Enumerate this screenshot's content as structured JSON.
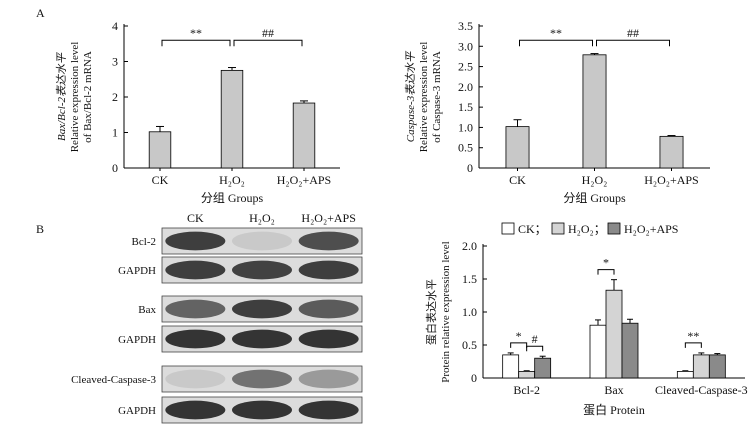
{
  "panel_labels": {
    "a": "A",
    "b": "B"
  },
  "chart_data": [
    {
      "type": "bar",
      "id": "bax_bcl2",
      "title": "",
      "xlabel": "分组 Groups",
      "ylabel_lines": [
        "Bax/Bcl-2表达水平",
        "Relative expression level",
        "of Bax/Bcl-2 mRNA"
      ],
      "categories": [
        "CK",
        "H₂O₂",
        "H₂O₂+APS"
      ],
      "values": [
        1.02,
        2.75,
        1.83
      ],
      "errors": [
        0.15,
        0.08,
        0.06
      ],
      "ylim": [
        0,
        4
      ],
      "yticks": [
        "0",
        "1",
        "2",
        "3",
        "4"
      ],
      "bar_color": "#c8c8c8",
      "significance": [
        {
          "from": 0,
          "to": 1,
          "label": "**"
        },
        {
          "from": 1,
          "to": 2,
          "label": "##"
        }
      ]
    },
    {
      "type": "bar",
      "id": "caspase3",
      "title": "",
      "xlabel": "分组 Groups",
      "ylabel_lines": [
        "Caspase-3表达水平",
        "Relative expression level",
        "of Caspase-3 mRNA"
      ],
      "categories": [
        "CK",
        "H₂O₂",
        "H₂O₂+APS"
      ],
      "values": [
        1.02,
        2.79,
        0.78
      ],
      "errors": [
        0.17,
        0.03,
        0.02
      ],
      "ylim": [
        0,
        3.5
      ],
      "yticks": [
        "0",
        "0.5",
        "1.0",
        "1.5",
        "2.0",
        "2.5",
        "3.0",
        "3.5"
      ],
      "bar_color": "#c8c8c8",
      "significance": [
        {
          "from": 0,
          "to": 1,
          "label": "**"
        },
        {
          "from": 1,
          "to": 2,
          "label": "##"
        }
      ]
    },
    {
      "type": "bar",
      "id": "protein",
      "title": "",
      "xlabel": "蛋白 Protein",
      "ylabel_lines": [
        "蛋白表达水平",
        "Protein relative expression level"
      ],
      "categories": [
        "Bcl-2",
        "Bax",
        "Cleaved-Caspase-3"
      ],
      "series": [
        {
          "name": "CK；",
          "values": [
            0.35,
            0.8,
            0.1
          ],
          "errors": [
            0.03,
            0.08,
            0.01
          ],
          "color": "#ffffff"
        },
        {
          "name": "H₂O₂；",
          "values": [
            0.1,
            1.33,
            0.35
          ],
          "errors": [
            0.01,
            0.16,
            0.03
          ],
          "color": "#d4d4d4"
        },
        {
          "name": "H₂O₂+APS",
          "values": [
            0.3,
            0.83,
            0.35
          ],
          "errors": [
            0.03,
            0.06,
            0.02
          ],
          "color": "#8a8a8a"
        }
      ],
      "ylim": [
        0,
        2.0
      ],
      "yticks": [
        "0",
        "0.5",
        "1.0",
        "1.5",
        "2.0"
      ],
      "legend_position": "top",
      "significance": [
        {
          "group": 0,
          "from": 0,
          "to": 1,
          "label": "*"
        },
        {
          "group": 0,
          "from": 1,
          "to": 2,
          "label": "#"
        },
        {
          "group": 1,
          "from": 0,
          "to": 1,
          "label": "*"
        },
        {
          "group": 2,
          "from": 0,
          "to": 1,
          "label": "**"
        }
      ]
    }
  ],
  "blot": {
    "lanes": [
      "CK",
      "H₂O₂",
      "H₂O₂+APS"
    ],
    "rows": [
      {
        "label": "Bcl-2",
        "intensity": [
          0.8,
          0.12,
          0.72
        ]
      },
      {
        "label": "GAPDH",
        "intensity": [
          0.8,
          0.78,
          0.8
        ]
      },
      {
        "label": "Bax",
        "intensity": [
          0.62,
          0.8,
          0.66
        ]
      },
      {
        "label": "GAPDH",
        "intensity": [
          0.85,
          0.85,
          0.85
        ]
      },
      {
        "label": "Cleaved-Caspase-3",
        "intensity": [
          0.12,
          0.55,
          0.35
        ]
      },
      {
        "label": "GAPDH",
        "intensity": [
          0.85,
          0.85,
          0.85
        ]
      }
    ]
  }
}
